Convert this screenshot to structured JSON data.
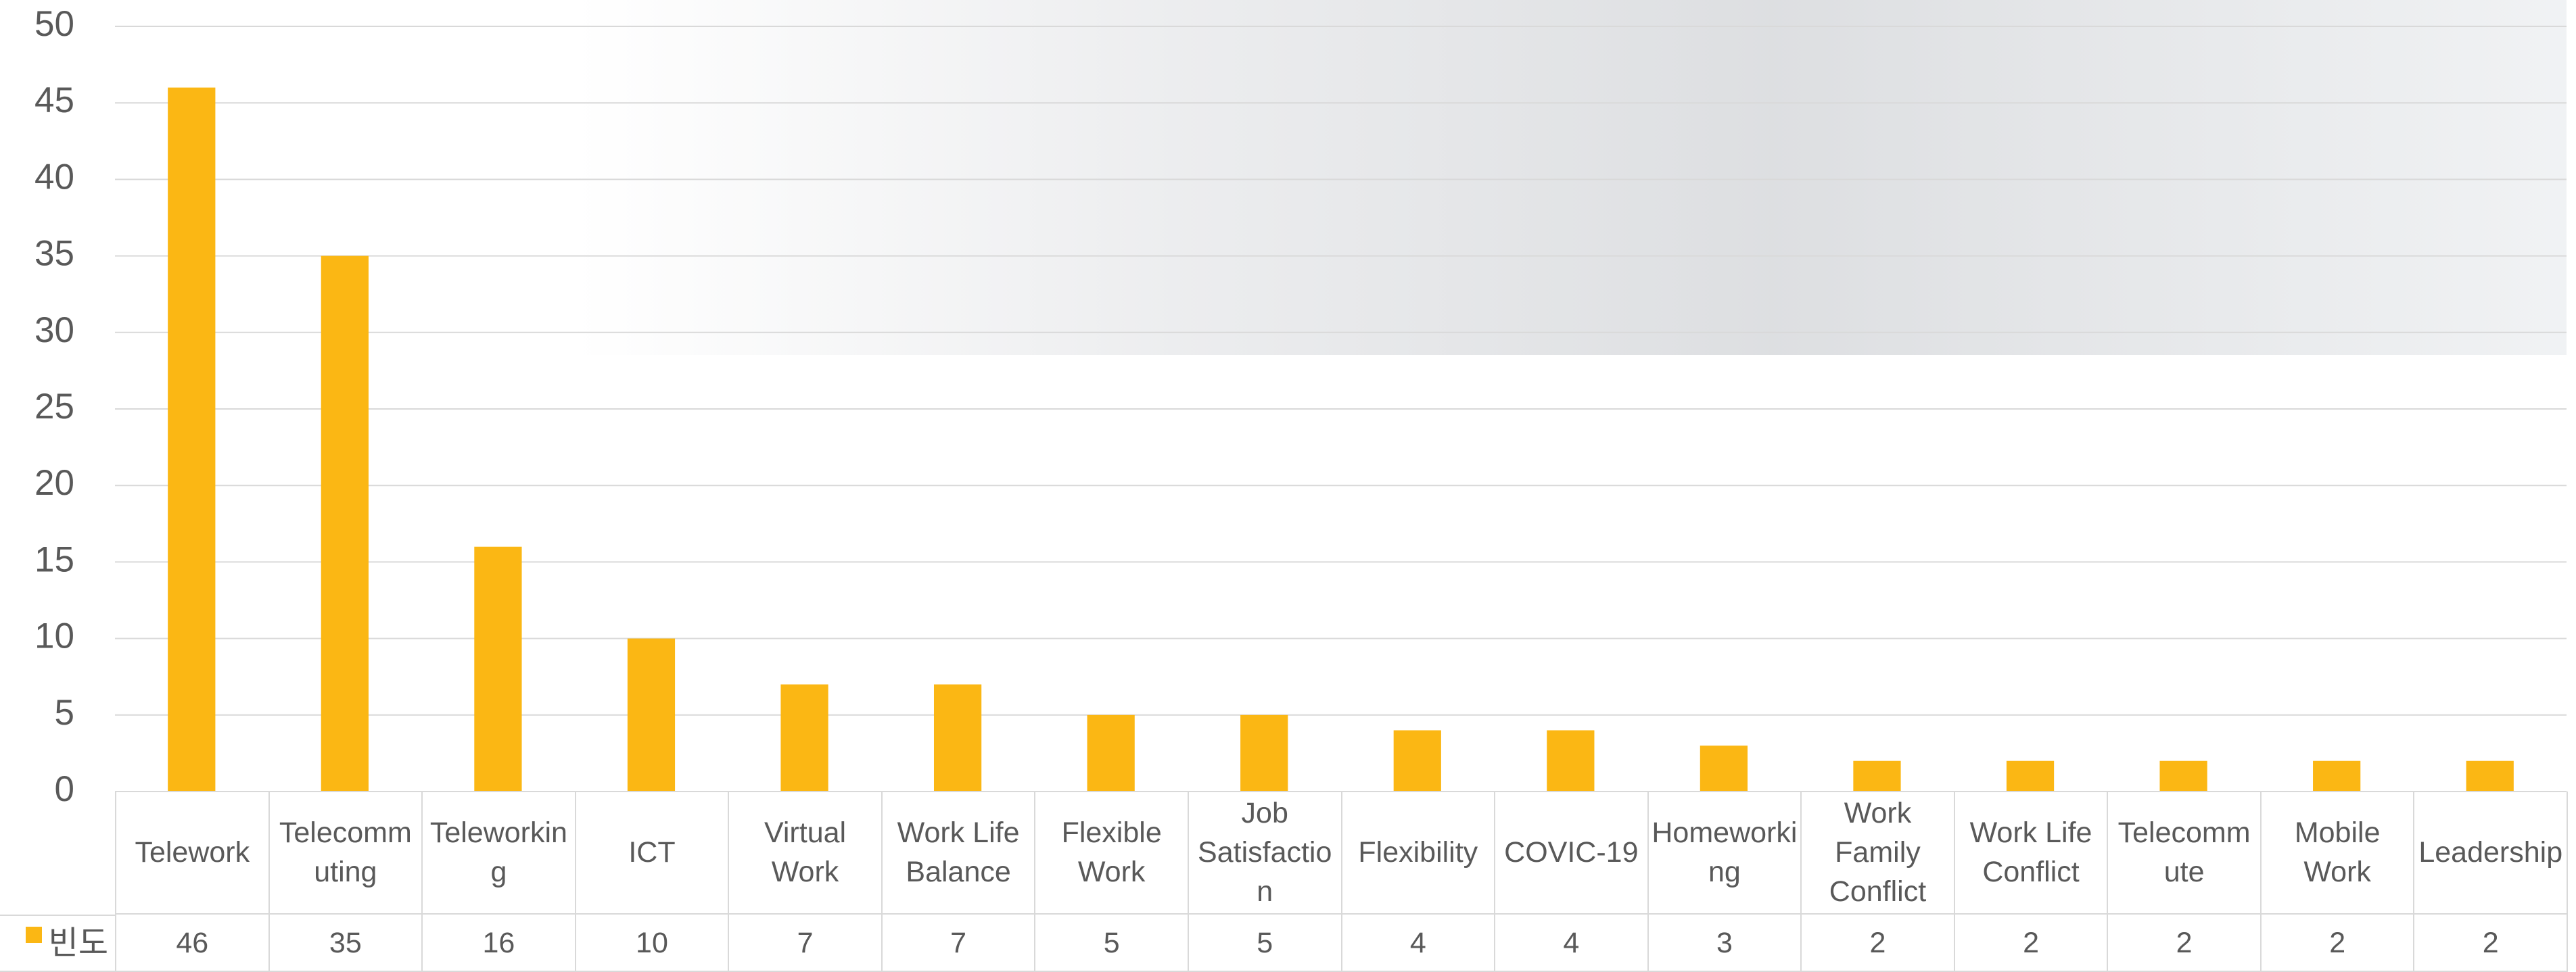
{
  "chart_data": {
    "type": "bar",
    "categories": [
      "Telework",
      "Telecommuting",
      "Teleworking",
      "ICT",
      "Virtual Work",
      "Work Life Balance",
      "Flexible Work",
      "Job Satisfaction",
      "Flexibility",
      "COVIC-19",
      "Homeworking",
      "Work Family Conflict",
      "Work Life Conflict",
      "Telecommute",
      "Mobile Work",
      "Leadership"
    ],
    "series": [
      {
        "name": "빈도",
        "color": "#fbb714",
        "values": [
          46,
          35,
          16,
          10,
          7,
          7,
          5,
          5,
          4,
          4,
          3,
          2,
          2,
          2,
          2,
          2
        ]
      }
    ],
    "ylim": [
      0,
      50
    ],
    "yticks": [
      0,
      5,
      10,
      15,
      20,
      25,
      30,
      35,
      40,
      45,
      50
    ],
    "grid": true,
    "data_table": true
  }
}
